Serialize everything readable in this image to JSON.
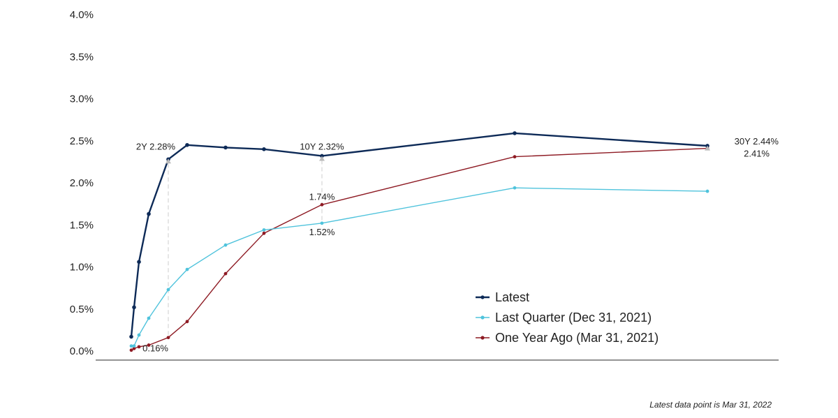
{
  "chart_data": {
    "type": "line",
    "y_tick_labels": [
      "0.0%",
      "0.5%",
      "1.0%",
      "1.5%",
      "2.0%",
      "2.5%",
      "3.0%",
      "3.5%",
      "4.0%"
    ],
    "ylim": [
      0,
      4.0
    ],
    "grid": false,
    "legend_position": "bottom-right",
    "maturities_years": [
      0.083,
      0.25,
      0.5,
      1,
      2,
      3,
      5,
      7,
      10,
      20,
      30
    ],
    "series": [
      {
        "name": "Latest",
        "color": "#0d2a57",
        "values": [
          0.17,
          0.52,
          1.06,
          1.63,
          2.28,
          2.45,
          2.42,
          2.4,
          2.32,
          2.59,
          2.44
        ]
      },
      {
        "name": "Last Quarter (Dec 31, 2021)",
        "color": "#4fc3dc",
        "values": [
          0.06,
          0.06,
          0.19,
          0.39,
          0.73,
          0.97,
          1.26,
          1.44,
          1.52,
          1.94,
          1.9
        ]
      },
      {
        "name": "One Year Ago (Mar 31, 2021)",
        "color": "#8e1b24",
        "values": [
          0.01,
          0.03,
          0.05,
          0.07,
          0.16,
          0.35,
          0.92,
          1.4,
          1.74,
          2.31,
          2.41
        ]
      }
    ],
    "annotations": [
      {
        "id": "ann_2y_latest",
        "text": "2Y 2.28%"
      },
      {
        "id": "ann_2y_year",
        "text": "0.16%"
      },
      {
        "id": "ann_10y_latest",
        "text": "10Y 2.32%"
      },
      {
        "id": "ann_10y_year",
        "text": "1.74%"
      },
      {
        "id": "ann_10y_quarter",
        "text": "1.52%"
      },
      {
        "id": "ann_30y_latest",
        "text": "30Y 2.44%"
      },
      {
        "id": "ann_30y_year",
        "text": "2.41%"
      }
    ],
    "marker_color": "#bbbbbb",
    "axis_color": "#555555",
    "footnote": "Latest data point is Mar 31, 2022"
  }
}
